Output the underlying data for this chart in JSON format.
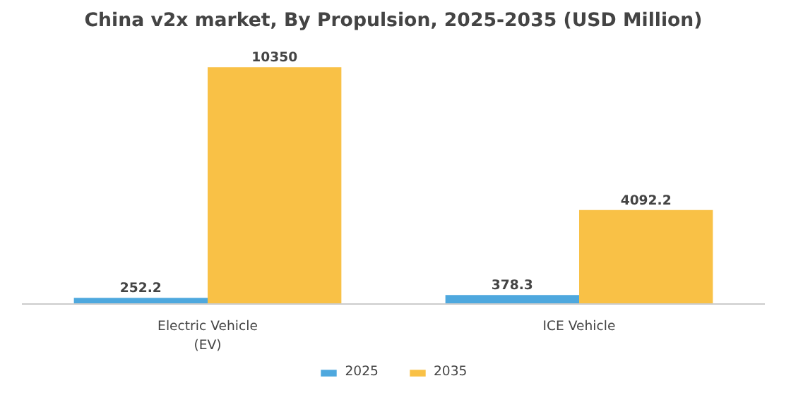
{
  "chart_data": {
    "type": "bar",
    "title": "China v2x market, By Propulsion, 2025-2035 (USD Million)",
    "categories": [
      "Electric Vehicle\n(EV)",
      "ICE Vehicle"
    ],
    "series": [
      {
        "name": "2025",
        "color": "#4ea8de",
        "values": [
          252.2,
          378.3
        ]
      },
      {
        "name": "2035",
        "color": "#f9c146",
        "values": [
          10350,
          4092.2
        ]
      }
    ],
    "data_labels": true,
    "legend": "bottom",
    "grid": false,
    "tick_labels": "x"
  }
}
